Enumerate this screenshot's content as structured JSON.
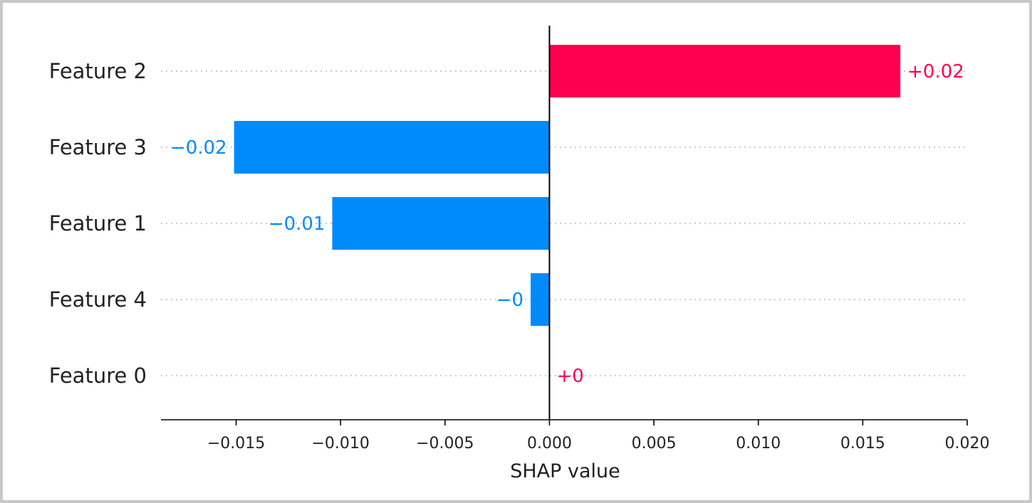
{
  "chart_data": {
    "type": "bar",
    "orientation": "horizontal",
    "categories": [
      "Feature 2",
      "Feature 3",
      "Feature 1",
      "Feature 4",
      "Feature 0"
    ],
    "values": [
      0.0168,
      -0.0151,
      -0.0104,
      -0.0009,
      0.0
    ],
    "value_labels": [
      "+0.02",
      "−0.02",
      "−0.01",
      "−0",
      "+0"
    ],
    "xlabel": "SHAP value",
    "xlim": [
      -0.0186,
      0.02
    ],
    "xticks": [
      -0.015,
      -0.01,
      -0.005,
      0.0,
      0.005,
      0.01,
      0.015,
      0.02
    ],
    "xtick_labels": [
      "−0.015",
      "−0.010",
      "−0.005",
      "0.000",
      "0.005",
      "0.010",
      "0.015",
      "0.020"
    ],
    "grid": "dotted horizontal guides per category",
    "colors": {
      "positive": "#ff0051",
      "negative": "#008bfb",
      "axis": "#000000",
      "text": "#222222",
      "guide": "#cccccc",
      "frame": "#c8c8c8"
    }
  }
}
